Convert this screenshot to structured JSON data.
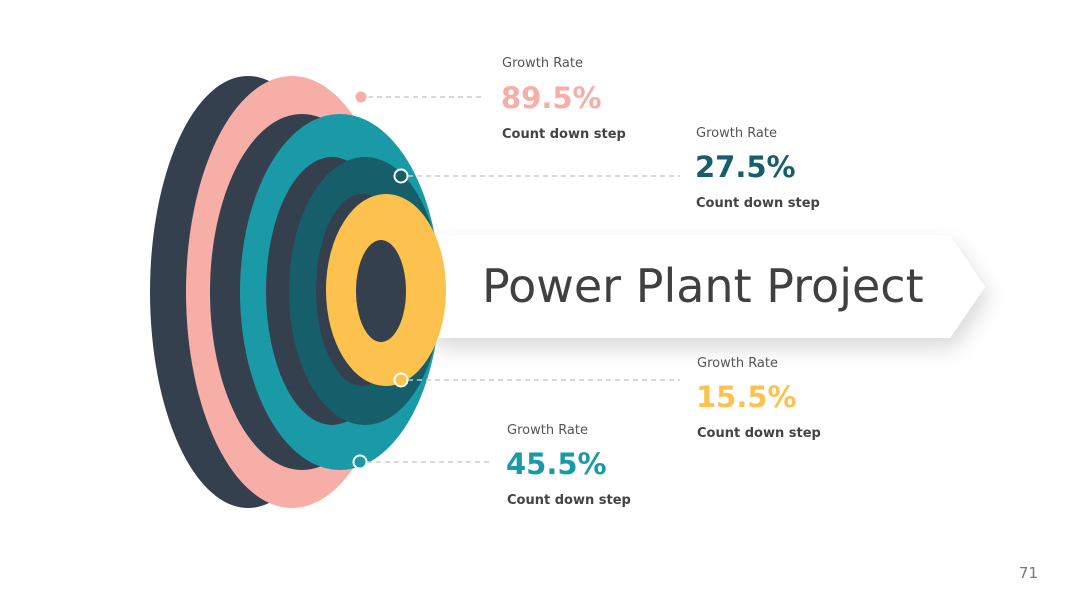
{
  "title": "Power Plant Project",
  "page_number": "71",
  "callouts": [
    {
      "label": "Growth Rate",
      "value": "89.5%",
      "caption": "Count down step"
    },
    {
      "label": "Growth Rate",
      "value": "27.5%",
      "caption": "Count down step"
    },
    {
      "label": "Growth Rate",
      "value": "15.5%",
      "caption": "Count down step"
    },
    {
      "label": "Growth Rate",
      "value": "45.5%",
      "caption": "Count down step"
    }
  ]
}
